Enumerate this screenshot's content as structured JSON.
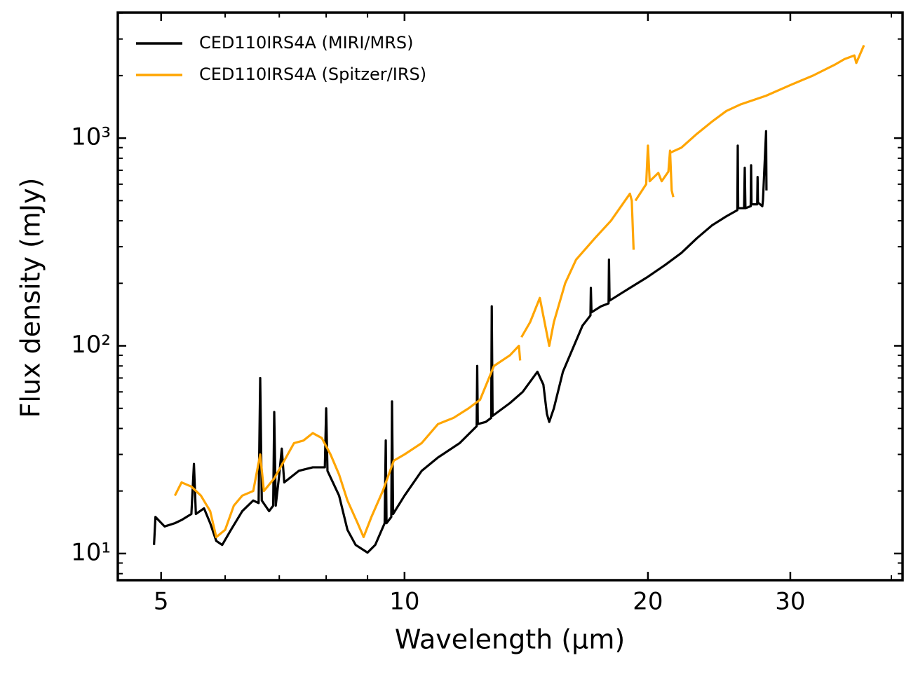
{
  "chart_data": {
    "type": "line",
    "xlabel": "Wavelength (µm)",
    "ylabel": "Flux density (mJy)",
    "xscale": "log",
    "yscale": "log",
    "xlim": [
      4.42,
      41.3
    ],
    "ylim": [
      7.44,
      4020
    ],
    "xticks": [
      5,
      10,
      20,
      30
    ],
    "xminorticks": [
      6,
      7,
      8,
      9,
      40
    ],
    "yticks": [
      {
        "value": 10,
        "label": "10¹"
      },
      {
        "value": 100,
        "label": "10²"
      },
      {
        "value": 1000,
        "label": "10³"
      }
    ],
    "yminorticks": [
      8,
      9,
      20,
      30,
      40,
      50,
      60,
      70,
      80,
      90,
      200,
      300,
      400,
      500,
      600,
      700,
      800,
      900,
      2000,
      3000,
      4000
    ],
    "legend": "upper left",
    "series": [
      {
        "name": "CED110IRS4A (MIRI/MRS)",
        "color": "#000000",
        "x": [
          4.9,
          4.92,
          5.05,
          5.2,
          5.3,
          5.45,
          5.49,
          5.52,
          5.65,
          5.75,
          5.85,
          5.95,
          6.1,
          6.3,
          6.5,
          6.6,
          6.63,
          6.66,
          6.8,
          6.88,
          6.9,
          6.93,
          7.0,
          7.05,
          7.1,
          7.4,
          7.7,
          7.97,
          8.0,
          8.03,
          8.3,
          8.5,
          8.7,
          9.0,
          9.2,
          9.45,
          9.48,
          9.5,
          9.63,
          9.65,
          9.68,
          10,
          10.5,
          11,
          11.7,
          12.28,
          12.3,
          12.32,
          12.6,
          12.8,
          12.82,
          12.85,
          13.5,
          14.0,
          14.6,
          14.85,
          15.0,
          15.1,
          15.3,
          15.7,
          16.2,
          16.6,
          16.98,
          17.0,
          17.03,
          17.5,
          17.88,
          17.9,
          17.93,
          19,
          20,
          21,
          22,
          23,
          24,
          25,
          25.8,
          25.83,
          25.86,
          26.3,
          26.35,
          26.4,
          26.8,
          26.83,
          26.86,
          27.3,
          27.33,
          27.36,
          27.7,
          27.75,
          28,
          28.03
        ],
        "values": [
          11,
          15,
          13.5,
          14,
          14.5,
          15.5,
          27,
          15.5,
          16.5,
          14,
          11.5,
          11,
          13,
          16,
          18,
          17.5,
          70,
          18,
          16,
          17,
          48,
          17,
          24,
          32,
          22,
          25,
          26,
          26,
          50,
          25,
          19,
          13,
          11,
          10.1,
          11,
          14,
          35,
          14,
          15,
          54,
          15.5,
          19,
          25,
          29,
          34,
          41,
          80,
          42,
          43,
          45,
          155,
          46,
          53,
          60,
          75,
          65,
          47,
          43,
          50,
          75,
          100,
          125,
          140,
          190,
          145,
          155,
          160,
          260,
          165,
          190,
          215,
          245,
          280,
          330,
          380,
          420,
          450,
          920,
          460,
          460,
          720,
          460,
          470,
          740,
          480,
          480,
          650,
          490,
          470,
          500,
          1080,
          560
        ]
      },
      {
        "name": "CED110IRS4A (Spitzer/IRS)",
        "color": "#ffa500",
        "x": [
          5.2,
          5.3,
          5.45,
          5.6,
          5.75,
          5.85,
          6.0,
          6.15,
          6.3,
          6.5,
          6.63,
          6.7,
          6.9,
          7.1,
          7.3,
          7.5,
          7.7,
          7.9,
          8.1,
          8.3,
          8.5,
          8.75,
          8.9,
          9.1,
          9.4,
          9.7,
          10,
          10.5,
          11,
          11.5,
          12,
          12.4,
          12.9,
          13.5,
          13.85,
          13.9,
          null,
          13.95,
          14.3,
          14.7,
          15.1,
          15.3,
          15.8,
          16.3,
          17.2,
          18,
          19,
          19.1,
          19.2,
          null,
          19.3,
          19.9,
          20.0,
          20.1,
          20.6,
          20.8,
          21.2,
          21.3,
          21.4,
          21.5,
          null,
          21.3,
          22,
          23,
          24,
          25,
          26,
          28,
          30,
          32,
          34,
          35,
          36,
          36.2,
          37
        ],
        "values": [
          19,
          22,
          21,
          19,
          16,
          12,
          13,
          17,
          19,
          20,
          30,
          20,
          23,
          28,
          34,
          35,
          38,
          36,
          30,
          24,
          18,
          14,
          12,
          15,
          20,
          28,
          30,
          34,
          42,
          45,
          50,
          55,
          80,
          90,
          100,
          85,
          null,
          110,
          130,
          170,
          100,
          130,
          200,
          260,
          330,
          400,
          540,
          500,
          290,
          null,
          500,
          600,
          920,
          620,
          680,
          620,
          690,
          870,
          560,
          520,
          null,
          850,
          900,
          1050,
          1200,
          1350,
          1450,
          1600,
          1800,
          2000,
          2250,
          2400,
          2500,
          2300,
          2800
        ]
      }
    ]
  }
}
